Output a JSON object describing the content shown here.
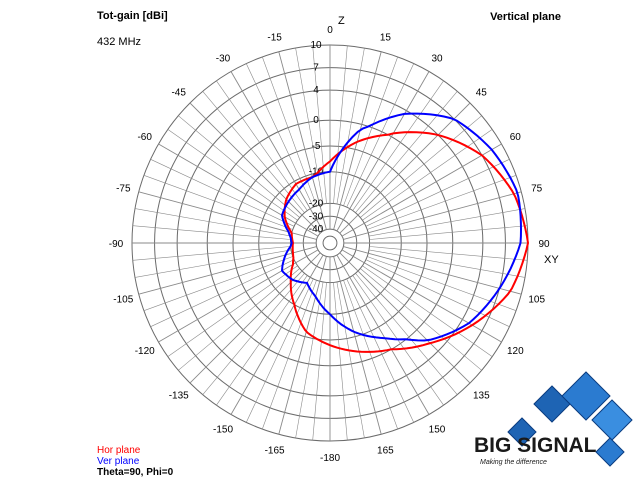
{
  "header": {
    "title": "Tot-gain [dBi]",
    "frequency": "432 MHz",
    "plane": "Vertical plane"
  },
  "axis_labels": {
    "top": "Z",
    "right": "XY"
  },
  "legend": {
    "hor": "Hor plane",
    "ver": "Ver plane",
    "hor_color": "#ff0000",
    "ver_color": "#0000ff"
  },
  "info": "Theta=90, Phi=0",
  "logo": {
    "name": "BIG SIGNAL",
    "tagline": "Making the difference"
  },
  "chart_data": {
    "type": "polar",
    "angle_labels": [
      {
        "deg": 0,
        "label": "0"
      },
      {
        "deg": 15,
        "label": "15"
      },
      {
        "deg": 30,
        "label": "30"
      },
      {
        "deg": 45,
        "label": "45"
      },
      {
        "deg": 60,
        "label": "60"
      },
      {
        "deg": 75,
        "label": "75"
      },
      {
        "deg": 90,
        "label": "90"
      },
      {
        "deg": 105,
        "label": "105"
      },
      {
        "deg": 120,
        "label": "120"
      },
      {
        "deg": 135,
        "label": "135"
      },
      {
        "deg": 150,
        "label": "150"
      },
      {
        "deg": 165,
        "label": "165"
      },
      {
        "deg": 180,
        "label": "-180"
      },
      {
        "deg": -165,
        "label": "-165"
      },
      {
        "deg": -150,
        "label": "-150"
      },
      {
        "deg": -135,
        "label": "-135"
      },
      {
        "deg": -120,
        "label": "-120"
      },
      {
        "deg": -105,
        "label": "-105"
      },
      {
        "deg": -90,
        "label": "-90"
      },
      {
        "deg": -75,
        "label": "-75"
      },
      {
        "deg": -60,
        "label": "-60"
      },
      {
        "deg": -45,
        "label": "-45"
      },
      {
        "deg": -30,
        "label": "-30"
      },
      {
        "deg": -15,
        "label": "-15"
      }
    ],
    "gain_ticks": [
      {
        "db": 10,
        "label": "10"
      },
      {
        "db": 7,
        "label": "7"
      },
      {
        "db": 4,
        "label": "4"
      },
      {
        "db": 0,
        "label": "0"
      },
      {
        "db": -5,
        "label": "-5"
      },
      {
        "db": -10,
        "label": "-10"
      },
      {
        "db": -20,
        "label": "-20"
      },
      {
        "db": -30,
        "label": "-30"
      },
      {
        "db": -40,
        "label": "-40"
      }
    ],
    "series": [
      {
        "name": "Hor plane",
        "color": "#ff0000",
        "points": [
          [
            0,
            -8
          ],
          [
            15,
            -3.5
          ],
          [
            30,
            0.5
          ],
          [
            45,
            4
          ],
          [
            60,
            7
          ],
          [
            75,
            9
          ],
          [
            90,
            10
          ],
          [
            105,
            8.5
          ],
          [
            120,
            5.5
          ],
          [
            135,
            2.5
          ],
          [
            150,
            0
          ],
          [
            165,
            -2
          ],
          [
            180,
            -4
          ],
          [
            -165,
            -6
          ],
          [
            -150,
            -10
          ],
          [
            -135,
            -15
          ],
          [
            -120,
            -19
          ],
          [
            -105,
            -21
          ],
          [
            -90,
            -22
          ],
          [
            -75,
            -20
          ],
          [
            -60,
            -16
          ],
          [
            -45,
            -13
          ],
          [
            -30,
            -11
          ],
          [
            -15,
            -11
          ]
        ]
      },
      {
        "name": "Ver plane",
        "color": "#0000ff",
        "points": [
          [
            0,
            -10
          ],
          [
            15,
            -1
          ],
          [
            30,
            3.5
          ],
          [
            45,
            7
          ],
          [
            60,
            8.5
          ],
          [
            75,
            9.5
          ],
          [
            90,
            9
          ],
          [
            105,
            7
          ],
          [
            120,
            5
          ],
          [
            135,
            2
          ],
          [
            150,
            -2.5
          ],
          [
            165,
            -6
          ],
          [
            180,
            -10
          ],
          [
            -165,
            -15
          ],
          [
            -150,
            -18
          ],
          [
            -135,
            -16
          ],
          [
            -120,
            -15
          ],
          [
            -105,
            -18
          ],
          [
            -90,
            -21
          ],
          [
            -75,
            -19
          ],
          [
            -60,
            -15
          ],
          [
            -45,
            -14
          ],
          [
            -30,
            -13
          ],
          [
            -15,
            -11
          ]
        ]
      }
    ]
  }
}
